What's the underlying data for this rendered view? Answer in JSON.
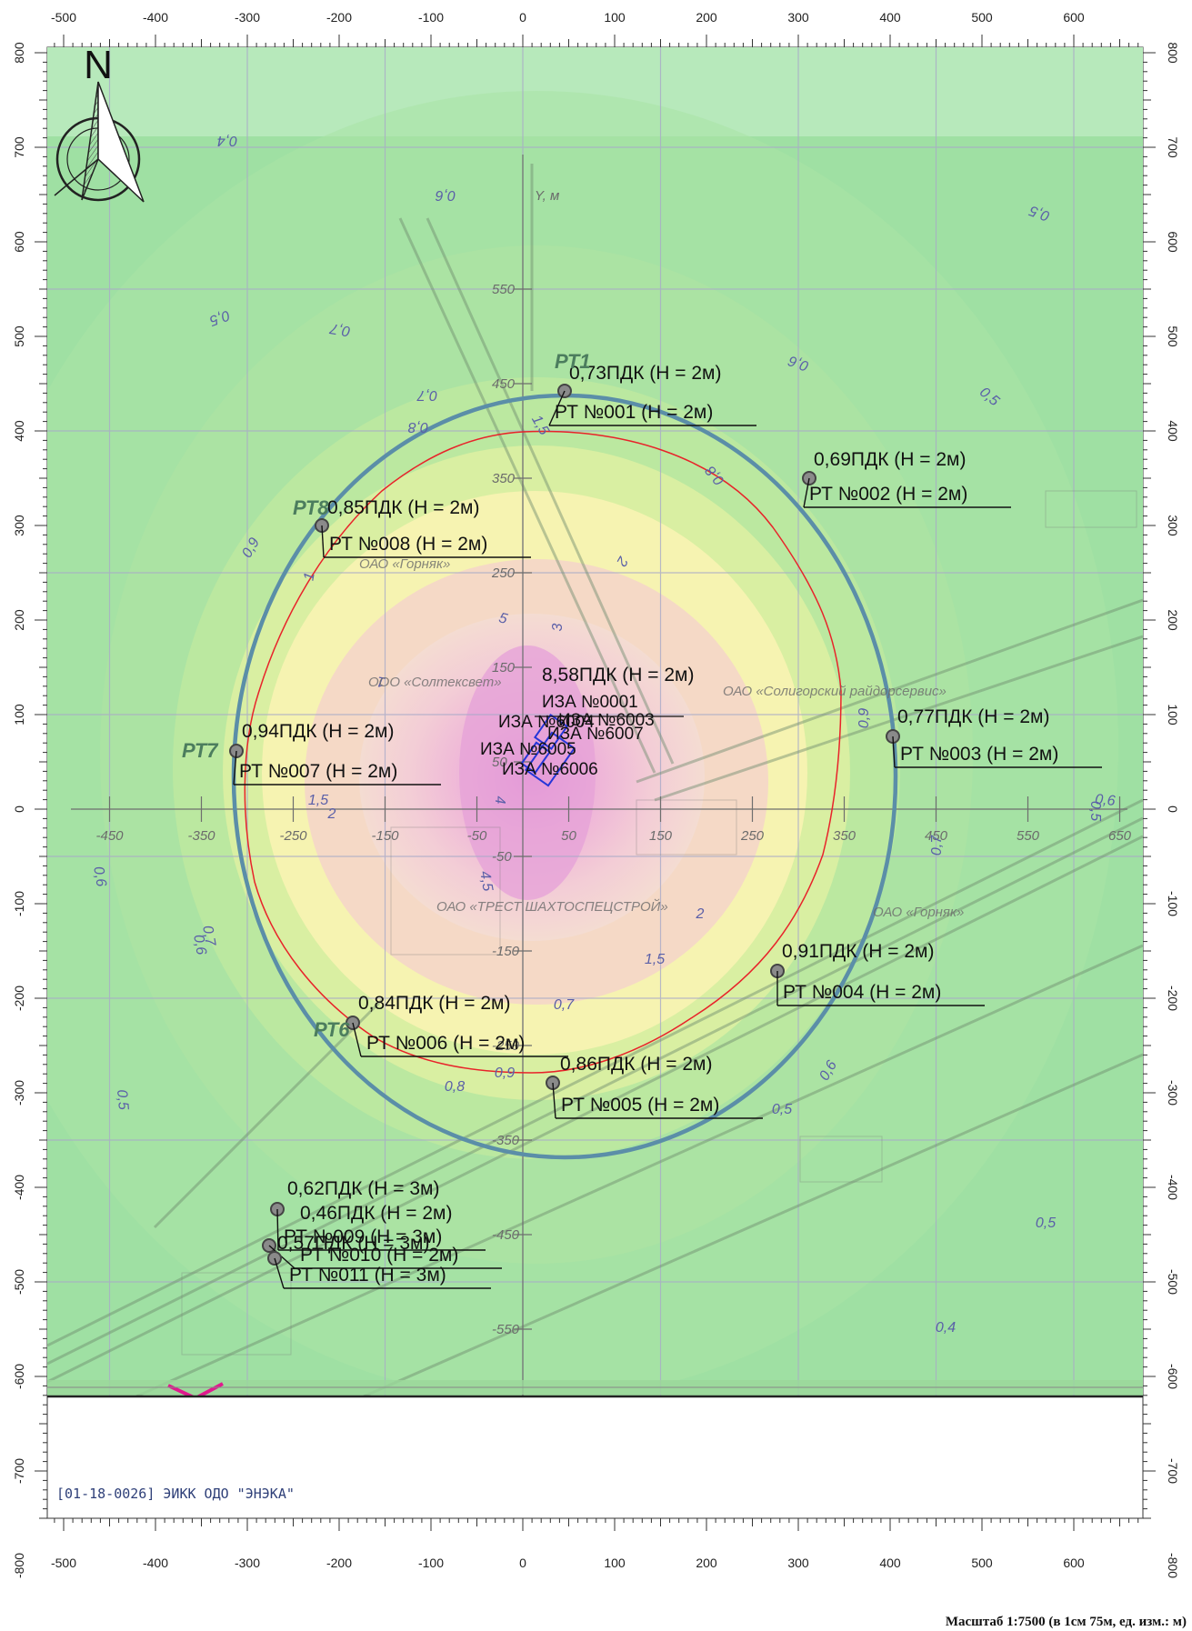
{
  "ruler": {
    "x_ticks": [
      "-500",
      "-400",
      "-300",
      "-200",
      "-100",
      "0",
      "100",
      "200",
      "300",
      "400",
      "500",
      "600"
    ],
    "y_ticks": [
      "800",
      "700",
      "600",
      "500",
      "400",
      "300",
      "200",
      "100",
      "0",
      "-100",
      "-200",
      "-300",
      "-400",
      "-500",
      "-600",
      "-700",
      "-800"
    ]
  },
  "north_label": "N",
  "inner_axis": {
    "x_labels": [
      "-450",
      "-350",
      "-250",
      "-150",
      "-50",
      "50",
      "150",
      "250",
      "350",
      "450",
      "550",
      "650"
    ],
    "y_labels": [
      "550",
      "450",
      "350",
      "250",
      "150",
      "50",
      "-50",
      "-150",
      "-250",
      "-350",
      "-450",
      "-550"
    ],
    "y_axis_name": "Y, м"
  },
  "contour_labels": [
    "0,4",
    "0,5",
    "0,5",
    "0,5",
    "0,6",
    "0,6",
    "0,6",
    "0,7",
    "0,7",
    "0,7",
    "0,8",
    "0,8",
    "0,9",
    "0,9",
    "1",
    "1",
    "1,5",
    "1,5",
    "2",
    "2",
    "3",
    "4",
    "4,5",
    "5",
    "0,4",
    "0,5",
    "0,5",
    "0,6",
    "0,6",
    "0,7",
    "0,8",
    "0,9",
    "1,5",
    "2",
    "0,7",
    "0,5",
    "0,5",
    "0,6"
  ],
  "map_labels": [
    "ОАО «Горняк»",
    "ООО «Солтексвет»",
    "ОАО «Солигорский райдорсервис»",
    "ОАО «ТРЕСТ ШАХТОСПЕЦСТРОЙ»",
    "ОАО «Горняк»"
  ],
  "calc_points": [
    {
      "name": "РТ1",
      "value": "0,73ПДК (Н = 2м)",
      "label": "РТ №001 (Н = 2м)"
    },
    {
      "name": "",
      "value": "0,69ПДК (Н = 2м)",
      "label": "РТ №002 (Н = 2м)"
    },
    {
      "name": "",
      "value": "0,77ПДК (Н = 2м)",
      "label": "РТ №003 (Н = 2м)"
    },
    {
      "name": "",
      "value": "0,91ПДК (Н = 2м)",
      "label": "РТ №004 (Н = 2м)"
    },
    {
      "name": "",
      "value": "0,86ПДК (Н = 2м)",
      "label": "РТ №005 (Н = 2м)"
    },
    {
      "name": "РТ6",
      "value": "0,84ПДК (Н = 2м)",
      "label": "РТ №006 (Н = 2м)"
    },
    {
      "name": "РТ7",
      "value": "0,94ПДК (Н = 2м)",
      "label": "РТ №007 (Н = 2м)"
    },
    {
      "name": "РТ8",
      "value": "0,85ПДК (Н = 2м)",
      "label": "РТ №008 (Н = 2м)"
    },
    {
      "name": "",
      "value": "0,62ПДК (Н = 3м)",
      "label": "РТ №009 (Н = 3м)"
    },
    {
      "name": "",
      "value": "0,46ПДК (Н = 2м)",
      "label": "РТ №010 (Н = 2м)"
    },
    {
      "name": "",
      "value": "0,57ПДК (Н = 3м)",
      "label": "РТ №011 (Н = 3м)"
    }
  ],
  "max_value": "8,58ПДК (Н = 2м)",
  "sources": [
    "ИЗА №0001",
    "ИЗА №6003",
    "ИЗА №6007",
    "ИЗА №6004",
    "ИЗА №6005",
    "ИЗА №6006"
  ],
  "footer": "[01-18-0026] ЭИКК ОДО \"ЭНЭКА\"",
  "scale": "Масштаб 1:7500 (в 1см 75м, ед. изм.: м)",
  "colors": {
    "green": "#9cdf9c",
    "yellow": "#f6f4b2",
    "pink": "#f2c6d6",
    "magenta": "#e79cd8",
    "spz_circle": "#5b8ea8",
    "red_line": "#e8232a"
  }
}
